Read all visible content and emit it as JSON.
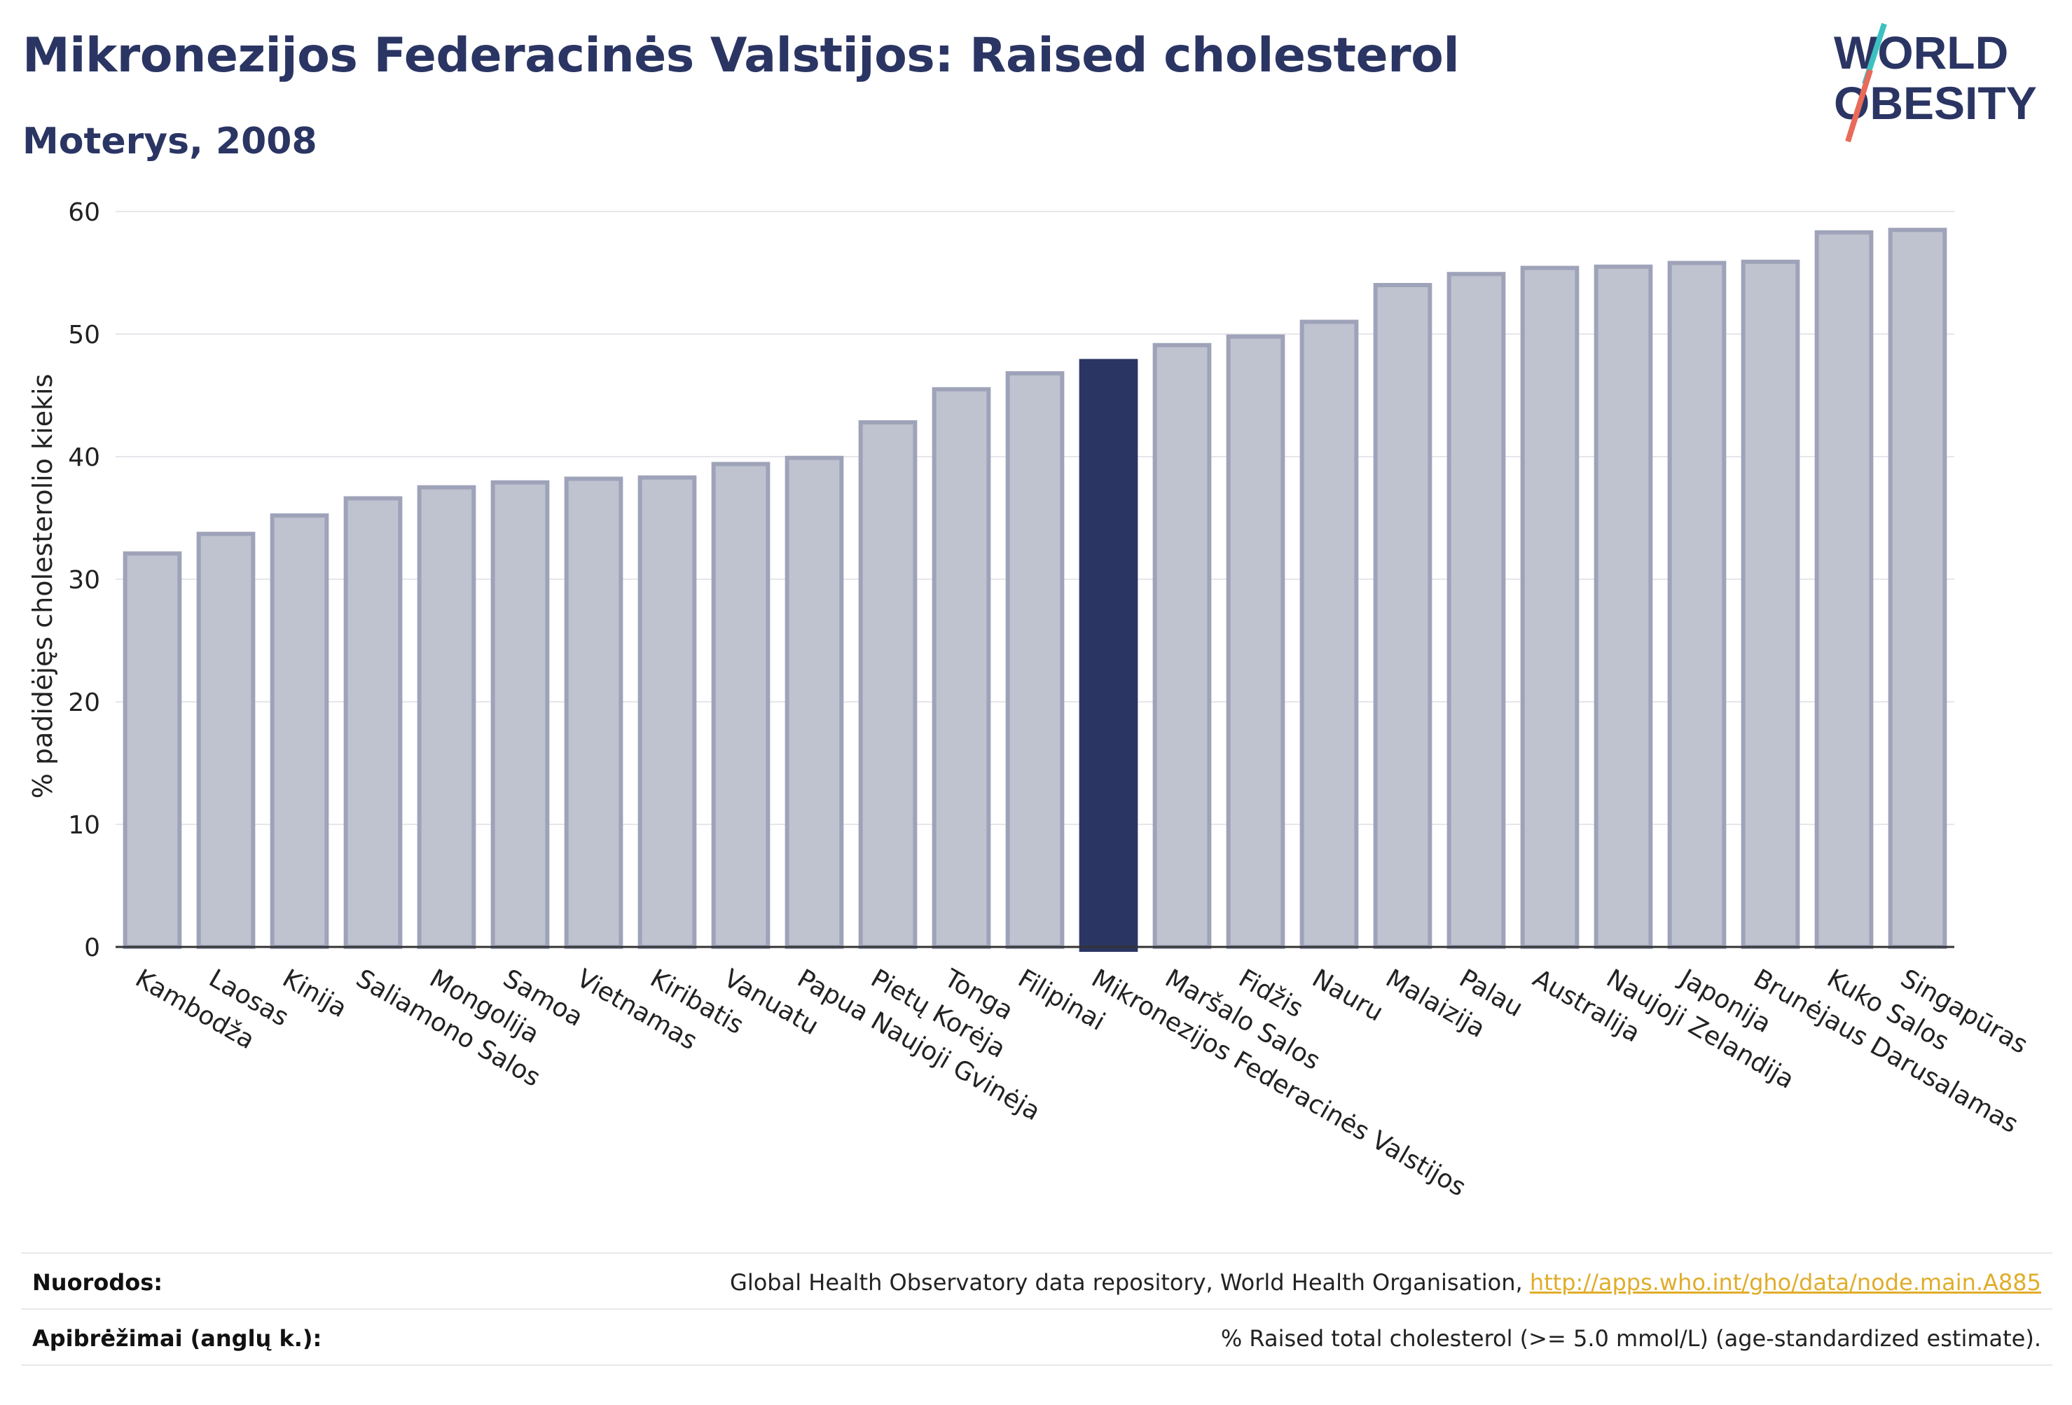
{
  "title": "Mikronezijos Federacinės Valstijos: Raised cholesterol",
  "subtitle": "Moterys, 2008",
  "logo": {
    "line1": "WORLD",
    "line2": "OBESITY"
  },
  "colors": {
    "highlight": "#2b3563",
    "bar": "#bfc2cf",
    "bar_edge": "#9ea3b9",
    "accent_teal": "#3cc1c0",
    "accent_red": "#e96a5a",
    "link": "#e0ad2a"
  },
  "chart_data": {
    "type": "bar",
    "ylabel": "% padidėjęs cholesterolio kiekis",
    "ylim": [
      0,
      60
    ],
    "yticks": [
      0,
      10,
      20,
      30,
      40,
      50,
      60
    ],
    "grid": true,
    "highlight": "Mikronezijos Federacinės Valstijos",
    "categories": [
      "Kambodža",
      "Laosas",
      "Kinija",
      "Saliamono Salos",
      "Mongolija",
      "Samoa",
      "Vietnamas",
      "Kiribatis",
      "Vanuatu",
      "Papua Naujoji Gvinėja",
      "Pietų Korėja",
      "Tonga",
      "Filipinai",
      "Mikronezijos Federacinės Valstijos",
      "Maršalo Salos",
      "Fidžis",
      "Nauru",
      "Malaizija",
      "Palau",
      "Australija",
      "Naujoji Zelandija",
      "Japonija",
      "Brunėjaus Darusalamas",
      "Kuko Salos",
      "Singapūras"
    ],
    "values": [
      32.1,
      33.7,
      35.2,
      36.6,
      37.5,
      37.9,
      38.2,
      38.3,
      39.4,
      39.9,
      42.8,
      45.5,
      46.8,
      47.8,
      49.1,
      49.8,
      51.0,
      54.0,
      54.9,
      55.4,
      55.5,
      55.8,
      55.9,
      58.3,
      58.5
    ]
  },
  "footer": {
    "refs_label": "Nuorodos:",
    "refs_text": "Global Health Observatory data repository, World Health Organisation, ",
    "refs_link": "http://apps.who.int/gho/data/node.main.A885",
    "defs_label": "Apibrėžimai (anglų k.):",
    "defs_text": "% Raised total cholesterol (>= 5.0 mmol/L) (age-standardized estimate)."
  }
}
